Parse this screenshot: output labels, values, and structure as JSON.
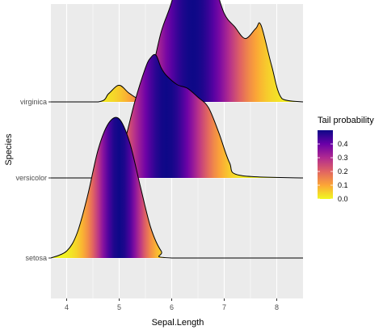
{
  "chart_data": {
    "type": "ridgeline",
    "xlabel": "Sepal.Length",
    "ylabel": "Species",
    "xlim": [
      3.7,
      8.5
    ],
    "x_ticks": [
      4,
      5,
      6,
      7,
      8
    ],
    "categories": [
      "setosa",
      "versicolor",
      "virginica"
    ],
    "grid": true,
    "legend": {
      "title": "Tail probability",
      "position": "right",
      "ticks": [
        "0.4",
        "0.3",
        "0.2",
        "0.1",
        "0.0"
      ],
      "tick_values": [
        0.4,
        0.3,
        0.2,
        0.1,
        0.0
      ],
      "range": [
        0,
        0.5
      ]
    },
    "colors": {
      "panel": "#EBEBEB",
      "grid": "#FFFFFF",
      "outline": "#000000",
      "palette_plasma": [
        "#F0F921",
        "#FCA636",
        "#E16462",
        "#B12A90",
        "#6A00A8",
        "#0D0887"
      ]
    },
    "series": [
      {
        "name": "setosa",
        "median": 5.0,
        "x": [
          3.7,
          4.0,
          4.2,
          4.4,
          4.6,
          4.8,
          5.0,
          5.2,
          5.4,
          5.6,
          5.8,
          6.0,
          8.5
        ],
        "density": [
          0.0,
          0.05,
          0.18,
          0.45,
          0.78,
          0.97,
          1.0,
          0.83,
          0.52,
          0.22,
          0.05,
          0.0,
          0.0
        ]
      },
      {
        "name": "versicolor",
        "median": 5.9,
        "x": [
          3.7,
          4.7,
          4.9,
          5.1,
          5.3,
          5.5,
          5.6,
          5.7,
          5.8,
          5.9,
          6.1,
          6.3,
          6.5,
          6.7,
          6.9,
          7.1,
          7.3,
          8.5
        ],
        "density": [
          0.0,
          0.0,
          0.05,
          0.28,
          0.6,
          0.86,
          0.94,
          0.96,
          0.86,
          0.8,
          0.73,
          0.7,
          0.63,
          0.55,
          0.35,
          0.12,
          0.02,
          0.0
        ],
        "scale_to_setosa": 0.92
      },
      {
        "name": "virginica",
        "median": 6.4,
        "x": [
          3.7,
          4.6,
          4.8,
          5.0,
          5.2,
          5.4,
          5.6,
          5.8,
          6.0,
          6.2,
          6.3,
          6.4,
          6.6,
          6.8,
          7.0,
          7.2,
          7.4,
          7.6,
          7.7,
          7.9,
          8.1,
          8.5
        ],
        "density": [
          0.0,
          0.0,
          0.05,
          0.1,
          0.05,
          0.03,
          0.16,
          0.42,
          0.6,
          0.85,
          0.96,
          1.0,
          0.88,
          0.72,
          0.53,
          0.45,
          0.38,
          0.44,
          0.46,
          0.22,
          0.02,
          0.0
        ],
        "scale_to_setosa": 1.2
      }
    ]
  }
}
